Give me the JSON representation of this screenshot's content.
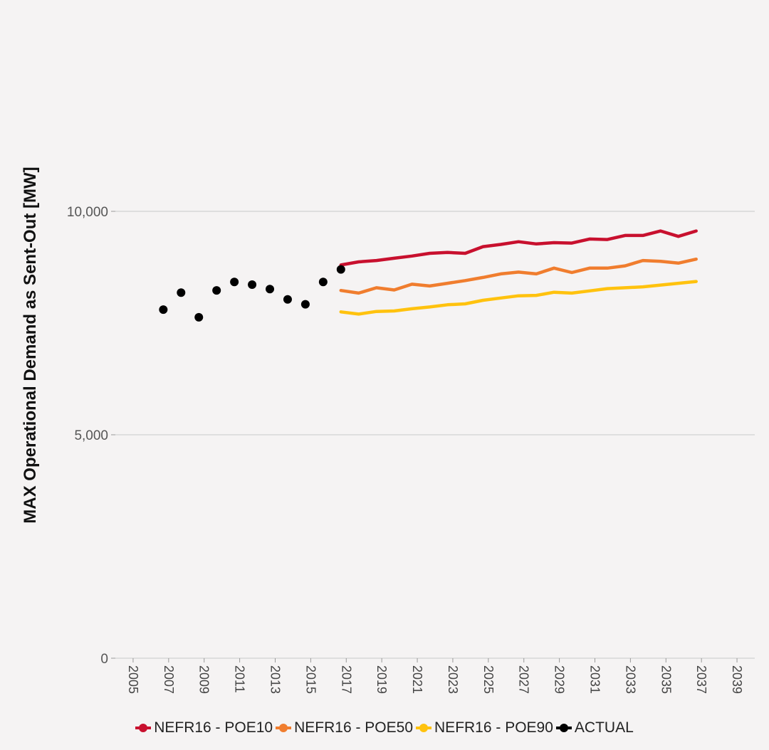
{
  "chart_data": {
    "type": "line",
    "title": "",
    "xlabel": "",
    "ylabel": "MAX Operational Demand as Sent-Out [MW]",
    "xlim": [
      2004,
      2040
    ],
    "ylim": [
      0,
      13500
    ],
    "x_ticks": [
      "2005",
      "2007",
      "2009",
      "2011",
      "2013",
      "2015",
      "2017",
      "2019",
      "2021",
      "2023",
      "2025",
      "2027",
      "2029",
      "2031",
      "2033",
      "2035",
      "2037",
      "2039"
    ],
    "y_ticks": [
      {
        "value": 0,
        "label": "0"
      },
      {
        "value": 5000,
        "label": "5,000"
      },
      {
        "value": 10000,
        "label": "10,000"
      }
    ],
    "grid": "horizontal",
    "legend_position": "bottom",
    "series": [
      {
        "name": "NEFR16 - POE10",
        "kind": "line",
        "color": "#c8102e",
        "x": [
          2016.7,
          2017.7,
          2018.7,
          2019.7,
          2020.7,
          2021.7,
          2022.7,
          2023.7,
          2024.7,
          2025.7,
          2026.7,
          2027.7,
          2028.7,
          2029.7,
          2030.7,
          2031.7,
          2032.7,
          2033.7,
          2034.7,
          2035.7,
          2036.7
        ],
        "values": [
          8800,
          8870,
          8900,
          8950,
          9000,
          9060,
          9080,
          9060,
          9210,
          9260,
          9320,
          9270,
          9300,
          9290,
          9380,
          9370,
          9460,
          9460,
          9560,
          9440,
          9560
        ]
      },
      {
        "name": "NEFR16 - POE50",
        "kind": "line",
        "color": "#f07d2e",
        "x": [
          2016.7,
          2017.7,
          2018.7,
          2019.7,
          2020.7,
          2021.7,
          2022.7,
          2023.7,
          2024.7,
          2025.7,
          2026.7,
          2027.7,
          2028.7,
          2029.7,
          2030.7,
          2031.7,
          2032.7,
          2033.7,
          2034.7,
          2035.7,
          2036.7
        ],
        "values": [
          8230,
          8170,
          8290,
          8240,
          8370,
          8330,
          8390,
          8450,
          8520,
          8600,
          8640,
          8600,
          8730,
          8630,
          8730,
          8730,
          8780,
          8900,
          8880,
          8840,
          8930
        ]
      },
      {
        "name": "NEFR16 - POE90",
        "kind": "line",
        "color": "#ffc20e",
        "x": [
          2016.7,
          2017.7,
          2018.7,
          2019.7,
          2020.7,
          2021.7,
          2022.7,
          2023.7,
          2024.7,
          2025.7,
          2026.7,
          2027.7,
          2028.7,
          2029.7,
          2030.7,
          2031.7,
          2032.7,
          2033.7,
          2034.7,
          2035.7,
          2036.7
        ],
        "values": [
          7750,
          7700,
          7760,
          7770,
          7820,
          7860,
          7910,
          7930,
          8010,
          8060,
          8110,
          8120,
          8190,
          8170,
          8220,
          8270,
          8290,
          8310,
          8350,
          8390,
          8430
        ]
      },
      {
        "name": "ACTUAL",
        "kind": "scatter",
        "color": "#000000",
        "x": [
          2006.7,
          2007.7,
          2008.7,
          2009.7,
          2010.7,
          2011.7,
          2012.7,
          2013.7,
          2014.7,
          2015.7,
          2016.7
        ],
        "values": [
          7800,
          8180,
          7630,
          8230,
          8420,
          8360,
          8260,
          8030,
          7920,
          8420,
          8700
        ]
      }
    ]
  }
}
